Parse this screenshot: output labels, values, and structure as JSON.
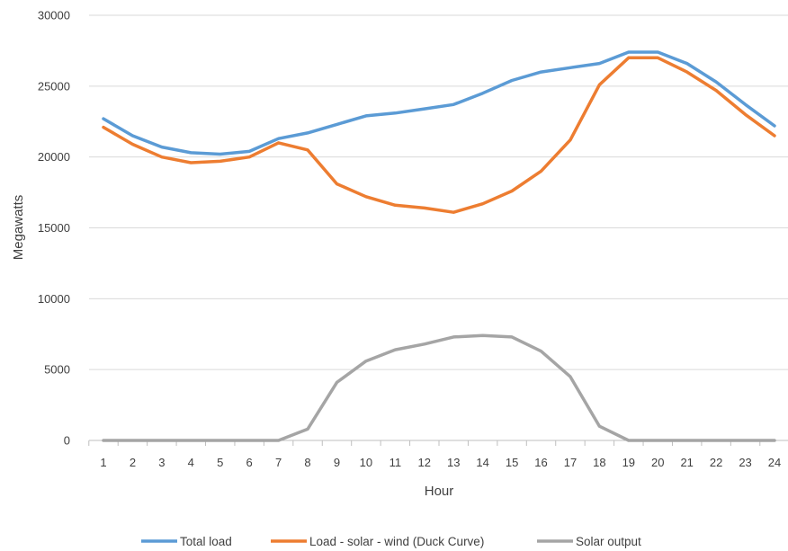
{
  "chart_data": {
    "type": "line",
    "title": "",
    "xlabel": "Hour",
    "ylabel": "Megawatts",
    "x": [
      1,
      2,
      3,
      4,
      5,
      6,
      7,
      8,
      9,
      10,
      11,
      12,
      13,
      14,
      15,
      16,
      17,
      18,
      19,
      20,
      21,
      22,
      23,
      24
    ],
    "ylim": [
      0,
      30000
    ],
    "yticks": [
      0,
      5000,
      10000,
      15000,
      20000,
      25000,
      30000
    ],
    "grid": true,
    "legend_position": "bottom",
    "series": [
      {
        "name": "Total load",
        "color": "#5b9bd5",
        "values": [
          22700,
          21500,
          20700,
          20300,
          20200,
          20400,
          21300,
          21700,
          22300,
          22900,
          23100,
          23400,
          23700,
          24500,
          25400,
          26000,
          26300,
          26600,
          27400,
          27400,
          26600,
          25300,
          23700,
          22200
        ]
      },
      {
        "name": "Load - solar - wind (Duck Curve)",
        "color": "#ed7d31",
        "values": [
          22100,
          20900,
          20000,
          19600,
          19700,
          20000,
          21000,
          20500,
          18100,
          17200,
          16600,
          16400,
          16100,
          16700,
          17600,
          19000,
          21200,
          25100,
          27000,
          27000,
          26000,
          24700,
          23000,
          21500
        ]
      },
      {
        "name": "Solar output",
        "color": "#a5a5a5",
        "values": [
          0,
          0,
          0,
          0,
          0,
          0,
          0,
          800,
          4100,
          5600,
          6400,
          6800,
          7300,
          7400,
          7300,
          6300,
          4500,
          1000,
          0,
          0,
          0,
          0,
          0,
          0
        ]
      }
    ]
  }
}
